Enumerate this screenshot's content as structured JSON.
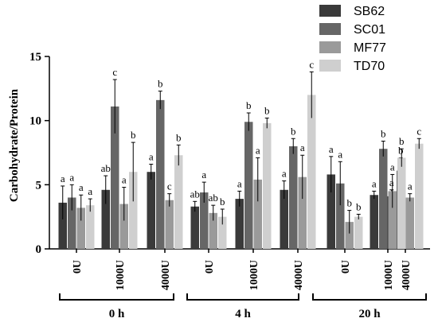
{
  "chart_data": {
    "type": "bar",
    "ylabel": "Carbohydrate/Protein",
    "ylim": [
      0,
      15
    ],
    "yticks": [
      0,
      5,
      10,
      15
    ],
    "legend_position": "top-right",
    "groups": [
      {
        "label": "0 h",
        "conditions": [
          "0U",
          "1000U",
          "4000U"
        ]
      },
      {
        "label": "4 h",
        "conditions": [
          "0U",
          "1000U",
          "4000U"
        ]
      },
      {
        "label": "20 h",
        "conditions": [
          "0U",
          "1000U",
          "4000U"
        ]
      }
    ],
    "series": [
      {
        "name": "SB62",
        "color": "#3a3a3a",
        "values": [
          3.6,
          4.6,
          6.0,
          3.3,
          3.9,
          4.6,
          5.8,
          4.2,
          4.1
        ],
        "errors": [
          1.3,
          1.1,
          0.6,
          0.4,
          0.6,
          0.7,
          1.4,
          0.3,
          0.5
        ],
        "letters": [
          "a",
          "ab",
          "a",
          "ab",
          "a",
          "a",
          "a",
          "a",
          "a"
        ]
      },
      {
        "name": "SC01",
        "color": "#666666",
        "values": [
          4.0,
          11.1,
          11.6,
          4.4,
          9.9,
          8.0,
          5.1,
          7.8,
          6.1
        ],
        "errors": [
          1.0,
          2.1,
          0.7,
          0.8,
          0.7,
          0.6,
          1.7,
          0.6,
          1.0
        ],
        "letters": [
          "a",
          "c",
          "b",
          "a",
          "b",
          "b",
          "a",
          "b",
          "b"
        ]
      },
      {
        "name": "MF77",
        "color": "#9a9a9a",
        "values": [
          3.2,
          3.5,
          3.8,
          2.8,
          5.4,
          5.6,
          2.1,
          4.5,
          4.0
        ],
        "errors": [
          1.0,
          1.3,
          0.5,
          0.6,
          1.7,
          1.7,
          0.9,
          1.3,
          0.3
        ],
        "letters": [
          "a",
          "a",
          "c",
          "ab",
          "a",
          "a",
          "b",
          "a",
          "a"
        ]
      },
      {
        "name": "TD70",
        "color": "#cfcfcf",
        "values": [
          3.4,
          6.0,
          7.3,
          2.5,
          9.8,
          12.0,
          2.5,
          7.1,
          8.2
        ],
        "errors": [
          0.5,
          2.3,
          0.8,
          0.6,
          0.4,
          1.8,
          0.2,
          0.7,
          0.4
        ],
        "letters": [
          "a",
          "b",
          "b",
          "b",
          "b",
          "c",
          "b",
          "b",
          "c"
        ]
      }
    ]
  }
}
